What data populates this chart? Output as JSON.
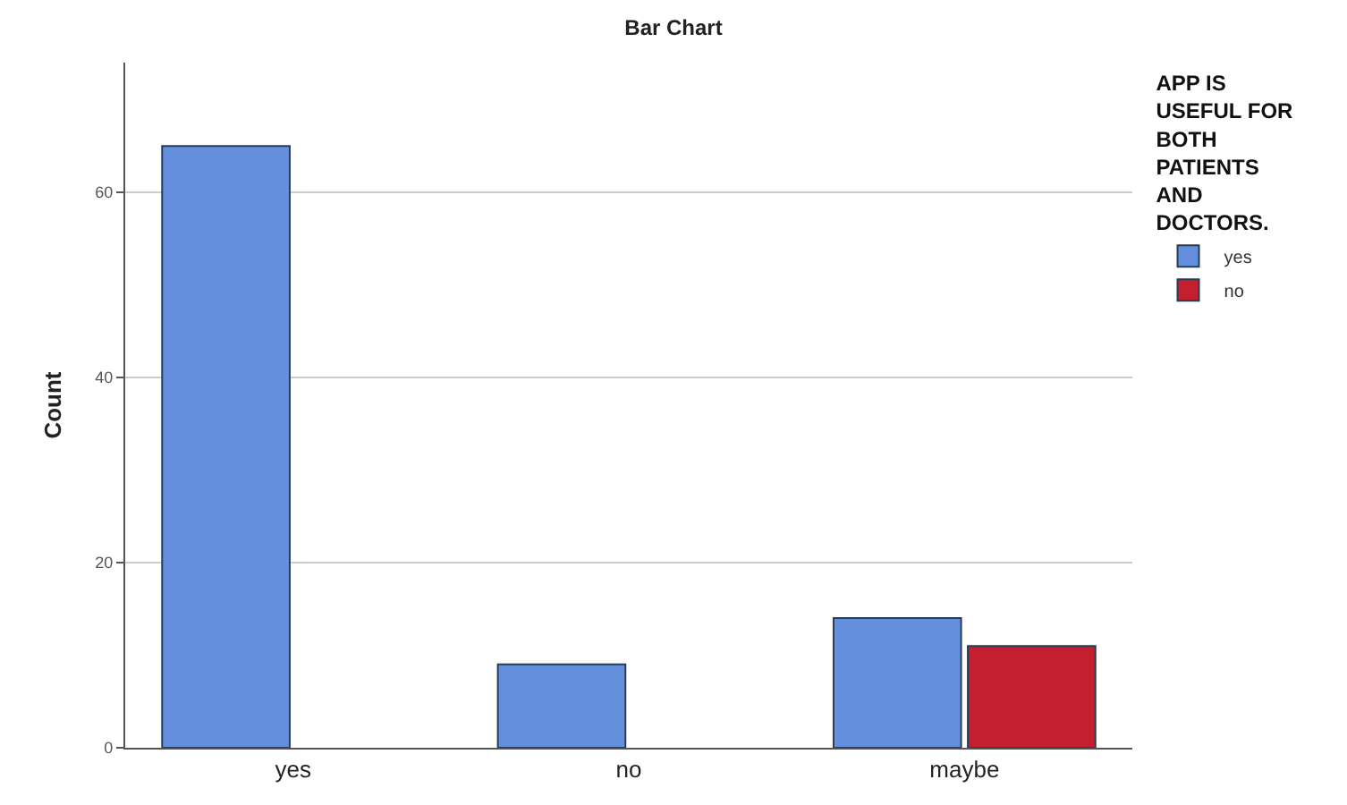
{
  "chart_data": {
    "type": "bar",
    "title": "Bar Chart",
    "ylabel": "Count",
    "legend_title": "APP IS USEFUL FOR BOTH PATIENTS AND DOCTORS.",
    "categories": [
      "yes",
      "no",
      "maybe"
    ],
    "series": [
      {
        "name": "yes",
        "color": "#6590dd",
        "values": [
          65,
          9,
          14
        ]
      },
      {
        "name": "no",
        "color": "#c3202f",
        "values": [
          null,
          null,
          11
        ]
      }
    ],
    "ylim": [
      0,
      74
    ],
    "yticks": [
      0,
      20,
      40,
      60
    ],
    "grid": "y",
    "legend": "top right"
  }
}
